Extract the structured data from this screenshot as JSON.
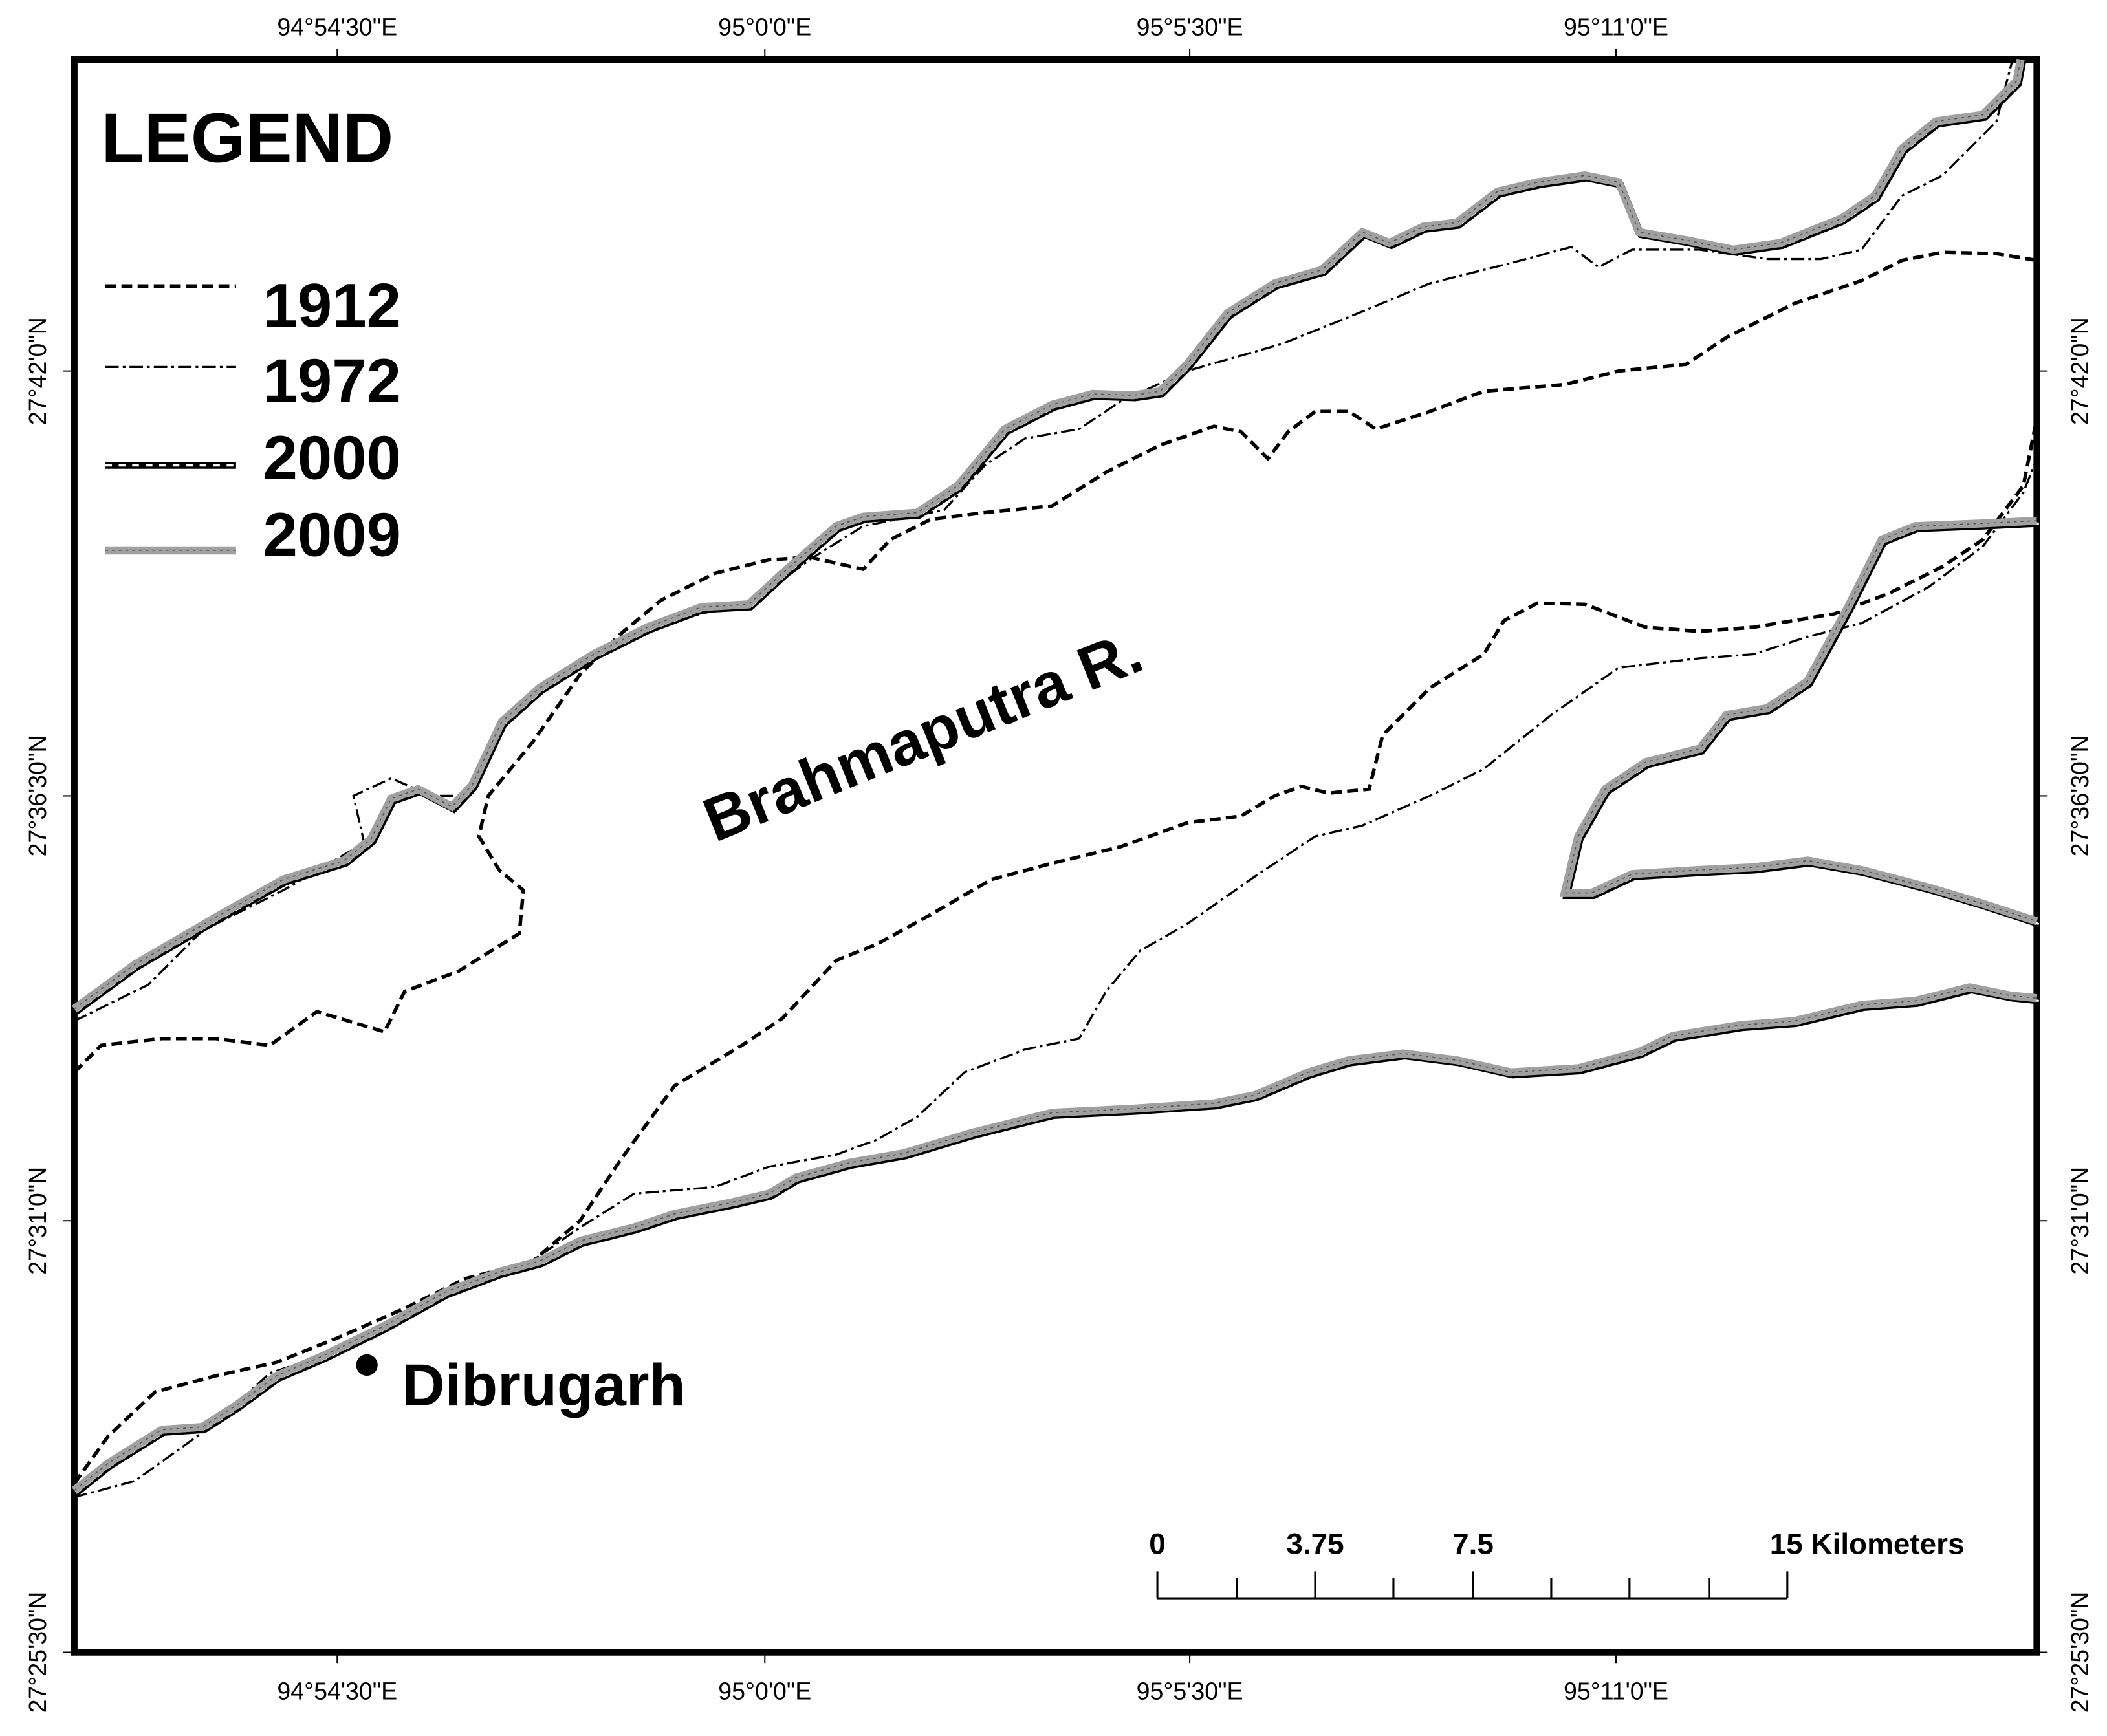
{
  "legend": {
    "title": "LEGEND",
    "items": [
      {
        "label": "1912"
      },
      {
        "label": "1972"
      },
      {
        "label": "2000"
      },
      {
        "label": "2009"
      }
    ]
  },
  "labels": {
    "river": "Brahmaputra R.",
    "city": "Dibrugarh"
  },
  "longitude_ticks": [
    "94°54'30\"E",
    "95°0'0\"E",
    "95°5'30\"E",
    "95°11'0\"E"
  ],
  "latitude_ticks": [
    "27°42'0\"N",
    "27°36'30\"N",
    "27°31'0\"N",
    "27°25'30\"N"
  ],
  "scale_bar": {
    "labels": [
      "0",
      "3.75",
      "7.5",
      "15 Kilometers"
    ]
  }
}
